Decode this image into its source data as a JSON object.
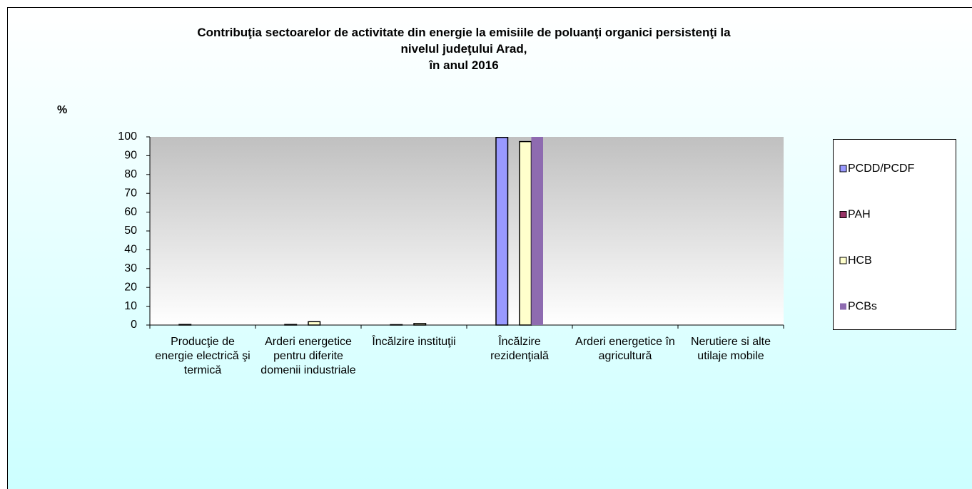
{
  "chart_data": {
    "type": "bar",
    "title": "Contribuţia sectoarelor de activitate din energie la emisiile de poluanţi organici persistenţi la\nnivelul judeţului Arad,\nîn anul 2016",
    "ylabel": "%",
    "categories": [
      "Producţie de energie electrică şi termică",
      "Arderi energetice pentru diferite domenii industriale",
      "Încălzire instituţii",
      "Încălzire rezidenţială",
      "Arderi energetice în agricultură",
      "Nerutiere si alte utilaje mobile"
    ],
    "series": [
      {
        "name": "PCDD/PCDF",
        "color": "#9999ff",
        "values": [
          0.3,
          0.3,
          0.2,
          99.7,
          0,
          0
        ]
      },
      {
        "name": "PAH",
        "color": "#993366",
        "values": [
          0,
          0,
          0,
          0,
          0,
          0
        ]
      },
      {
        "name": "HCB",
        "color": "#ffffcc",
        "values": [
          0,
          1.8,
          0.8,
          97.5,
          0,
          0
        ]
      },
      {
        "name": "PCBs",
        "color": "#8e6bb0",
        "values": [
          0,
          0,
          0,
          100,
          0,
          0
        ]
      }
    ],
    "ylim": [
      0,
      100
    ],
    "yticks": [
      0,
      10,
      20,
      30,
      40,
      50,
      60,
      70,
      80,
      90,
      100
    ],
    "legend": "right"
  }
}
